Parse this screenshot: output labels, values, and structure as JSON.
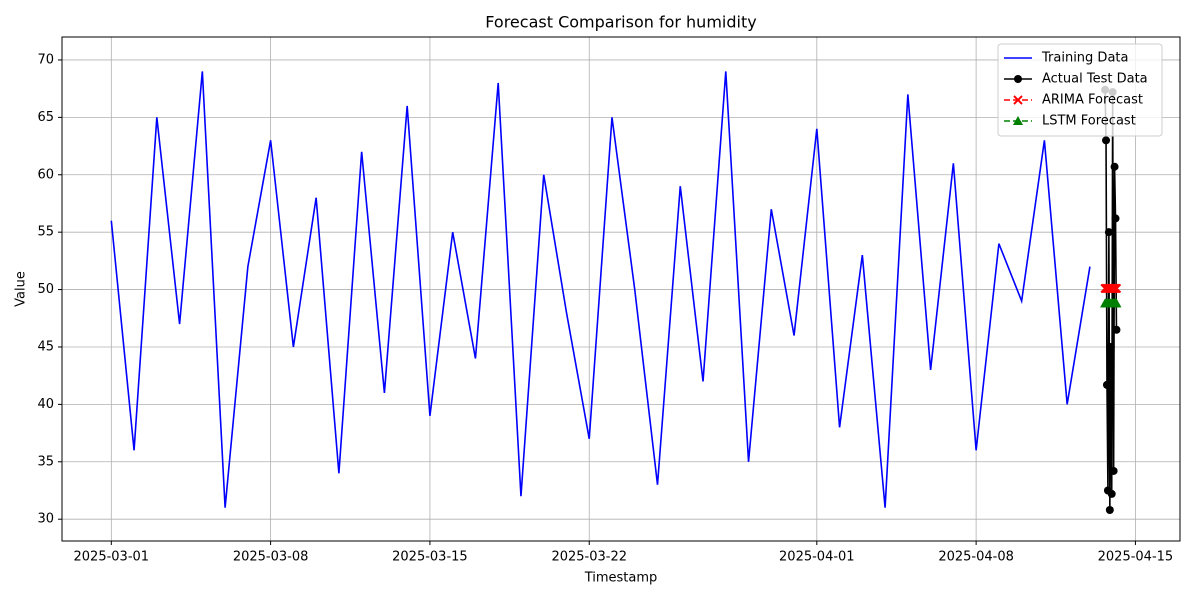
{
  "chart_data": {
    "type": "line",
    "title": "Forecast Comparison for humidity",
    "x_label": "Timestamp",
    "y_label": "Value",
    "xlim": [
      "2025-02-26 20:00",
      "2025-04-16 23:00"
    ],
    "xticks": [
      "2025-03-01",
      "2025-03-08",
      "2025-03-15",
      "2025-03-22",
      "2025-04-01",
      "2025-04-08",
      "2025-04-15"
    ],
    "ylim": [
      28.1,
      72.0
    ],
    "yticks": [
      30,
      35,
      40,
      45,
      50,
      55,
      60,
      65,
      70
    ],
    "grid": true,
    "legend": "upper right",
    "series": [
      {
        "name": "Training Data",
        "color": "#0000ff",
        "marker": "none",
        "dash": "solid",
        "x": [
          "2025-03-01",
          "2025-03-02",
          "2025-03-03",
          "2025-03-04",
          "2025-03-05",
          "2025-03-06",
          "2025-03-07",
          "2025-03-08",
          "2025-03-09",
          "2025-03-10",
          "2025-03-11",
          "2025-03-12",
          "2025-03-13",
          "2025-03-14",
          "2025-03-15",
          "2025-03-16",
          "2025-03-17",
          "2025-03-18",
          "2025-03-19",
          "2025-03-20",
          "2025-03-21",
          "2025-03-22",
          "2025-03-23",
          "2025-03-24",
          "2025-03-25",
          "2025-03-26",
          "2025-03-27",
          "2025-03-28",
          "2025-03-29",
          "2025-03-30",
          "2025-03-31",
          "2025-04-01",
          "2025-04-02",
          "2025-04-03",
          "2025-04-04",
          "2025-04-05",
          "2025-04-06",
          "2025-04-07",
          "2025-04-08",
          "2025-04-09",
          "2025-04-10",
          "2025-04-11",
          "2025-04-12",
          "2025-04-13"
        ],
        "values": [
          56,
          36,
          65,
          47,
          69,
          31,
          52,
          63,
          45,
          58,
          34,
          62,
          41,
          66,
          39,
          55,
          44,
          68,
          32,
          60,
          48,
          37,
          65,
          50,
          33,
          59,
          42,
          69,
          35,
          57,
          46,
          64,
          38,
          53,
          31,
          67,
          43,
          61,
          36,
          54,
          49,
          63,
          40,
          52
        ]
      },
      {
        "name": "Actual Test Data",
        "color": "#000000",
        "marker": "circle",
        "dash": "solid",
        "x": [
          "2025-04-13 16:00",
          "2025-04-13 17:00",
          "2025-04-13 18:00",
          "2025-04-13 19:00",
          "2025-04-13 20:00",
          "2025-04-13 21:00",
          "2025-04-13 22:00",
          "2025-04-13 23:00",
          "2025-04-14 00:00",
          "2025-04-14 01:00",
          "2025-04-14 02:00",
          "2025-04-14 03:00",
          "2025-04-14 04:00"
        ],
        "values": [
          67.4,
          63.0,
          41.7,
          32.5,
          55.0,
          30.8,
          45.0,
          32.2,
          67.2,
          34.2,
          60.7,
          56.2,
          46.5
        ]
      },
      {
        "name": "ARIMA Forecast",
        "color": "#ff0000",
        "marker": "x",
        "dash": "dashed",
        "x": [
          "2025-04-13 16:00",
          "2025-04-13 17:00",
          "2025-04-13 18:00",
          "2025-04-13 19:00",
          "2025-04-13 20:00",
          "2025-04-13 21:00",
          "2025-04-13 22:00",
          "2025-04-13 23:00",
          "2025-04-14 00:00",
          "2025-04-14 01:00",
          "2025-04-14 02:00",
          "2025-04-14 03:00",
          "2025-04-14 04:00"
        ],
        "values": [
          50.1,
          50.1,
          50.1,
          50.1,
          50.1,
          50.1,
          50.1,
          50.1,
          50.1,
          50.1,
          50.1,
          50.1,
          50.1
        ]
      },
      {
        "name": "LSTM Forecast",
        "color": "#008000",
        "marker": "triangle",
        "dash": "dashed",
        "x": [
          "2025-04-13 16:00",
          "2025-04-13 17:00",
          "2025-04-13 18:00",
          "2025-04-13 19:00",
          "2025-04-13 20:00",
          "2025-04-13 21:00",
          "2025-04-13 22:00",
          "2025-04-13 23:00",
          "2025-04-14 00:00",
          "2025-04-14 01:00",
          "2025-04-14 02:00",
          "2025-04-14 03:00",
          "2025-04-14 04:00"
        ],
        "values": [
          48.8,
          48.8,
          48.8,
          48.8,
          48.8,
          48.8,
          48.8,
          48.8,
          48.8,
          48.8,
          48.8,
          48.8,
          48.8
        ]
      }
    ]
  }
}
